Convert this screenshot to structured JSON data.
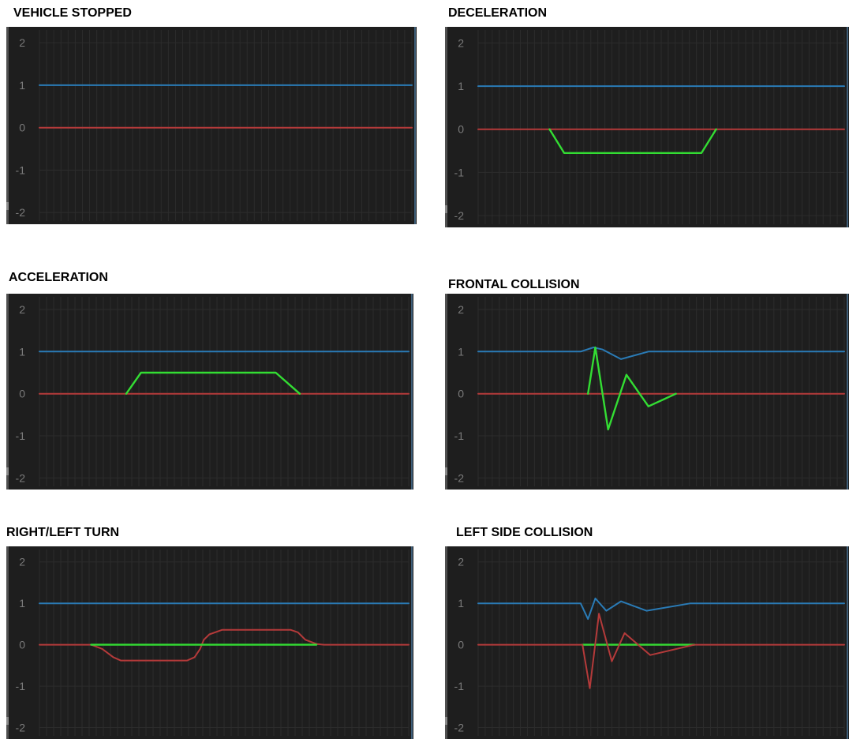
{
  "chart_data": [
    {
      "type": "line",
      "title": "VEHICLE STOPPED",
      "ylim": [
        -2.2,
        2.3
      ],
      "xlim": [
        0,
        100
      ],
      "yticks": [
        "2",
        "1",
        "0",
        "-1",
        "-2"
      ],
      "colors": {
        "background": "#1e1e1e",
        "grid": "#2c2c2c",
        "tick_label": "#7a7a7a"
      },
      "series": [
        {
          "color": "#2a7bb6",
          "points": [
            [
              0,
              1
            ],
            [
              100,
              1
            ]
          ]
        },
        {
          "color": "#b43a3a",
          "points": [
            [
              0,
              0
            ],
            [
              100,
              0
            ]
          ]
        }
      ]
    },
    {
      "type": "line",
      "title": "DECELERATION",
      "ylim": [
        -2.2,
        2.3
      ],
      "xlim": [
        0,
        100
      ],
      "yticks": [
        "2",
        "1",
        "0",
        "-1",
        "-2"
      ],
      "colors": {
        "background": "#1e1e1e",
        "grid": "#2c2c2c",
        "tick_label": "#7a7a7a"
      },
      "series": [
        {
          "color": "#2a7bb6",
          "points": [
            [
              0,
              1
            ],
            [
              100,
              1
            ]
          ]
        },
        {
          "color": "#b43a3a",
          "points": [
            [
              0,
              0
            ],
            [
              100,
              0
            ]
          ]
        },
        {
          "color": "#33dd33",
          "points": [
            [
              19.5,
              0
            ],
            [
              23.5,
              -0.55
            ],
            [
              61,
              -0.55
            ],
            [
              65,
              0
            ]
          ]
        }
      ]
    },
    {
      "type": "line",
      "title": "ACCELERATION",
      "ylim": [
        -2.2,
        2.3
      ],
      "xlim": [
        0,
        100
      ],
      "yticks": [
        "2",
        "1",
        "0",
        "-1",
        "-2"
      ],
      "colors": {
        "background": "#1e1e1e",
        "grid": "#2c2c2c",
        "tick_label": "#7a7a7a"
      },
      "series": [
        {
          "color": "#2a7bb6",
          "points": [
            [
              0,
              1
            ],
            [
              100,
              1
            ]
          ]
        },
        {
          "color": "#b43a3a",
          "points": [
            [
              0,
              0
            ],
            [
              100,
              0
            ]
          ]
        },
        {
          "color": "#33dd33",
          "points": [
            [
              23.5,
              0
            ],
            [
              27.5,
              0.5
            ],
            [
              64,
              0.5
            ],
            [
              70.5,
              0
            ]
          ]
        }
      ]
    },
    {
      "type": "line",
      "title": "FRONTAL COLLISION",
      "ylim": [
        -2.2,
        2.3
      ],
      "xlim": [
        0,
        100
      ],
      "yticks": [
        "2",
        "1",
        "0",
        "-1",
        "-2"
      ],
      "colors": {
        "background": "#1e1e1e",
        "grid": "#2c2c2c",
        "tick_label": "#7a7a7a"
      },
      "series": [
        {
          "color": "#2a7bb6",
          "points": [
            [
              0,
              1
            ],
            [
              28,
              1
            ],
            [
              31.5,
              1.1
            ],
            [
              34,
              1.05
            ],
            [
              39,
              0.82
            ],
            [
              46.5,
              1
            ],
            [
              100,
              1
            ]
          ]
        },
        {
          "color": "#b43a3a",
          "points": [
            [
              0,
              0
            ],
            [
              100,
              0
            ]
          ]
        },
        {
          "color": "#33dd33",
          "points": [
            [
              30,
              0
            ],
            [
              32,
              1.1
            ],
            [
              35.5,
              -0.85
            ],
            [
              40.5,
              0.45
            ],
            [
              46.5,
              -0.3
            ],
            [
              54,
              0
            ]
          ]
        }
      ]
    },
    {
      "type": "line",
      "title": "RIGHT/LEFT TURN",
      "ylim": [
        -2.2,
        2.3
      ],
      "xlim": [
        0,
        100
      ],
      "yticks": [
        "2",
        "1",
        "0",
        "-1",
        "-2"
      ],
      "colors": {
        "background": "#1e1e1e",
        "grid": "#2c2c2c",
        "tick_label": "#7a7a7a"
      },
      "series": [
        {
          "color": "#2a7bb6",
          "points": [
            [
              0,
              1
            ],
            [
              100,
              1
            ]
          ]
        },
        {
          "color": "#b43a3a",
          "points": [
            [
              0,
              0
            ],
            [
              14,
              0
            ],
            [
              17,
              -0.1
            ],
            [
              20,
              -0.3
            ],
            [
              22,
              -0.38
            ],
            [
              40,
              -0.38
            ],
            [
              42,
              -0.3
            ],
            [
              43.5,
              -0.1
            ],
            [
              44.5,
              0.12
            ],
            [
              46,
              0.25
            ],
            [
              49.5,
              0.36
            ],
            [
              68,
              0.36
            ],
            [
              70,
              0.3
            ],
            [
              72,
              0.12
            ],
            [
              75,
              0.02
            ],
            [
              77,
              0
            ],
            [
              100,
              0
            ]
          ]
        },
        {
          "color": "#33dd33",
          "points": [
            [
              14,
              0
            ],
            [
              75,
              0
            ]
          ]
        }
      ]
    },
    {
      "type": "line",
      "title": "LEFT SIDE COLLISION",
      "ylim": [
        -2.2,
        2.3
      ],
      "xlim": [
        0,
        100
      ],
      "yticks": [
        "2",
        "1",
        "0",
        "-1",
        "-2"
      ],
      "colors": {
        "background": "#1e1e1e",
        "grid": "#2c2c2c",
        "tick_label": "#7a7a7a"
      },
      "series": [
        {
          "color": "#2a7bb6",
          "points": [
            [
              0,
              1
            ],
            [
              28,
              1
            ],
            [
              30,
              0.62
            ],
            [
              32,
              1.12
            ],
            [
              35,
              0.82
            ],
            [
              39,
              1.05
            ],
            [
              46,
              0.82
            ],
            [
              58,
              1
            ],
            [
              100,
              1
            ]
          ]
        },
        {
          "color": "#b43a3a",
          "points": [
            [
              0,
              0
            ],
            [
              100,
              0
            ]
          ]
        },
        {
          "color": "#33dd33",
          "points": [
            [
              28.5,
              0
            ],
            [
              59,
              0
            ]
          ]
        },
        {
          "color": "#b43a3a",
          "points": [
            [
              28.5,
              0
            ],
            [
              30.5,
              -1.05
            ],
            [
              33,
              0.75
            ],
            [
              36.5,
              -0.4
            ],
            [
              40,
              0.28
            ],
            [
              47,
              -0.25
            ],
            [
              59,
              0
            ]
          ]
        }
      ]
    }
  ]
}
